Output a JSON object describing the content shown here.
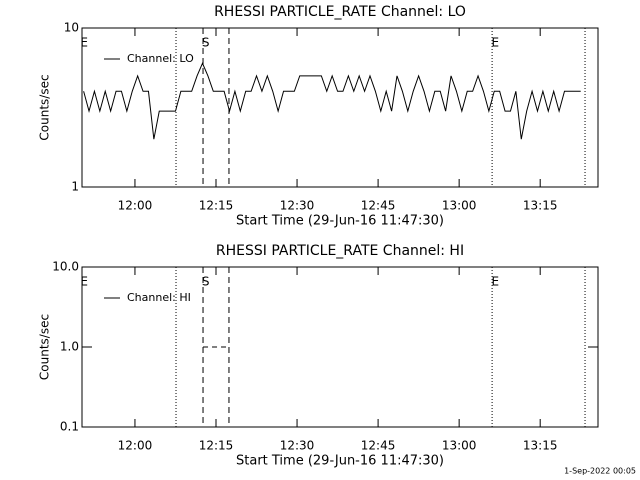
{
  "chart_data": [
    {
      "type": "line",
      "title": "RHESSI PARTICLE_RATE Channel: LO",
      "xlabel": "Start Time (29-Jun-16 11:47:30)",
      "ylabel": "Counts/sec",
      "xlim": [
        2.7,
        98.2
      ],
      "xticks": [
        {
          "value": 12.5,
          "label": "12:00"
        },
        {
          "value": 27.5,
          "label": "12:15"
        },
        {
          "value": 42.5,
          "label": "12:30"
        },
        {
          "value": 57.5,
          "label": "12:45"
        },
        {
          "value": 72.5,
          "label": "13:00"
        },
        {
          "value": 87.5,
          "label": "13:15"
        }
      ],
      "ylim": [
        1,
        10
      ],
      "yticks": [
        1,
        10
      ],
      "log_y": true,
      "vlines": [
        {
          "x": 20.1,
          "style": "dotted"
        },
        {
          "x": 25.1,
          "style": "dashed"
        },
        {
          "x": 29.9,
          "style": "dashed"
        },
        {
          "x": 78.6,
          "style": "dotted"
        },
        {
          "x": 95.8,
          "style": "dotted"
        }
      ],
      "annotations": [
        {
          "text": "E",
          "x": 3.1
        },
        {
          "text": "S",
          "x": 25.6
        },
        {
          "text": "E",
          "x": 79.2
        }
      ],
      "series": [
        {
          "name": "Channel: LO",
          "color": "#000000",
          "dashed": false,
          "x": [
            3,
            4,
            5,
            6,
            7,
            8,
            9,
            10,
            11,
            12,
            13,
            14,
            15,
            16,
            17,
            18,
            19,
            20,
            21,
            22,
            23,
            24,
            25,
            26,
            27,
            28,
            29,
            30,
            31,
            32,
            33,
            34,
            35,
            36,
            37,
            38,
            39,
            40,
            41,
            42,
            43,
            44,
            45,
            46,
            47,
            48,
            49,
            50,
            51,
            52,
            53,
            54,
            55,
            56,
            57,
            58,
            59,
            60,
            61,
            62,
            63,
            64,
            65,
            66,
            67,
            68,
            69,
            70,
            71,
            72,
            73,
            74,
            75,
            76,
            77,
            78,
            79,
            80,
            81,
            82,
            83,
            84,
            85,
            86,
            87,
            88,
            89,
            90,
            91,
            92,
            93,
            94,
            95
          ],
          "values": [
            4,
            3,
            4,
            3,
            4,
            3,
            4,
            4,
            3,
            4,
            5,
            4,
            4,
            2,
            3,
            3,
            3,
            3,
            4,
            4,
            4,
            5,
            6,
            5,
            4,
            4,
            4,
            3,
            4,
            3,
            4,
            4,
            5,
            4,
            5,
            4,
            3,
            4,
            4,
            4,
            5,
            5,
            5,
            5,
            5,
            4,
            5,
            4,
            4,
            5,
            4,
            5,
            4,
            5,
            4,
            3,
            4,
            3,
            5,
            4,
            3,
            4,
            5,
            4,
            3,
            4,
            4,
            3,
            5,
            4,
            3,
            4,
            4,
            5,
            4,
            3,
            4,
            4,
            3,
            3,
            4,
            2,
            3,
            4,
            3,
            4,
            3,
            4,
            3,
            4,
            4,
            4,
            4
          ]
        }
      ]
    },
    {
      "type": "line",
      "title": "RHESSI PARTICLE_RATE Channel: HI",
      "xlabel": "Start Time (29-Jun-16 11:47:30)",
      "ylabel": "Counts/sec",
      "xlim": [
        2.7,
        98.2
      ],
      "xticks": [
        {
          "value": 12.5,
          "label": "12:00"
        },
        {
          "value": 27.5,
          "label": "12:15"
        },
        {
          "value": 42.5,
          "label": "12:30"
        },
        {
          "value": 57.5,
          "label": "12:45"
        },
        {
          "value": 72.5,
          "label": "13:00"
        },
        {
          "value": 87.5,
          "label": "13:15"
        }
      ],
      "ylim": [
        0.1,
        10
      ],
      "yticks": [
        0.1,
        {
          "value": 1,
          "label": "1.0"
        },
        {
          "value": 10,
          "label": "10.0"
        }
      ],
      "log_y": true,
      "vlines": [
        {
          "x": 20.1,
          "style": "dotted"
        },
        {
          "x": 25.1,
          "style": "dashed"
        },
        {
          "x": 29.9,
          "style": "dashed"
        },
        {
          "x": 78.6,
          "style": "dotted"
        },
        {
          "x": 95.8,
          "style": "dotted"
        }
      ],
      "annotations": [
        {
          "text": "E",
          "x": 3.1
        },
        {
          "text": "S",
          "x": 25.6
        },
        {
          "text": "E",
          "x": 79.2
        }
      ],
      "series": [
        {
          "name": "Channel: HI",
          "color": "#000000",
          "dashed": true,
          "x": [
            25.1,
            29.9
          ],
          "values": [
            1,
            1
          ]
        }
      ]
    }
  ],
  "footer": "1-Sep-2022 00:05"
}
